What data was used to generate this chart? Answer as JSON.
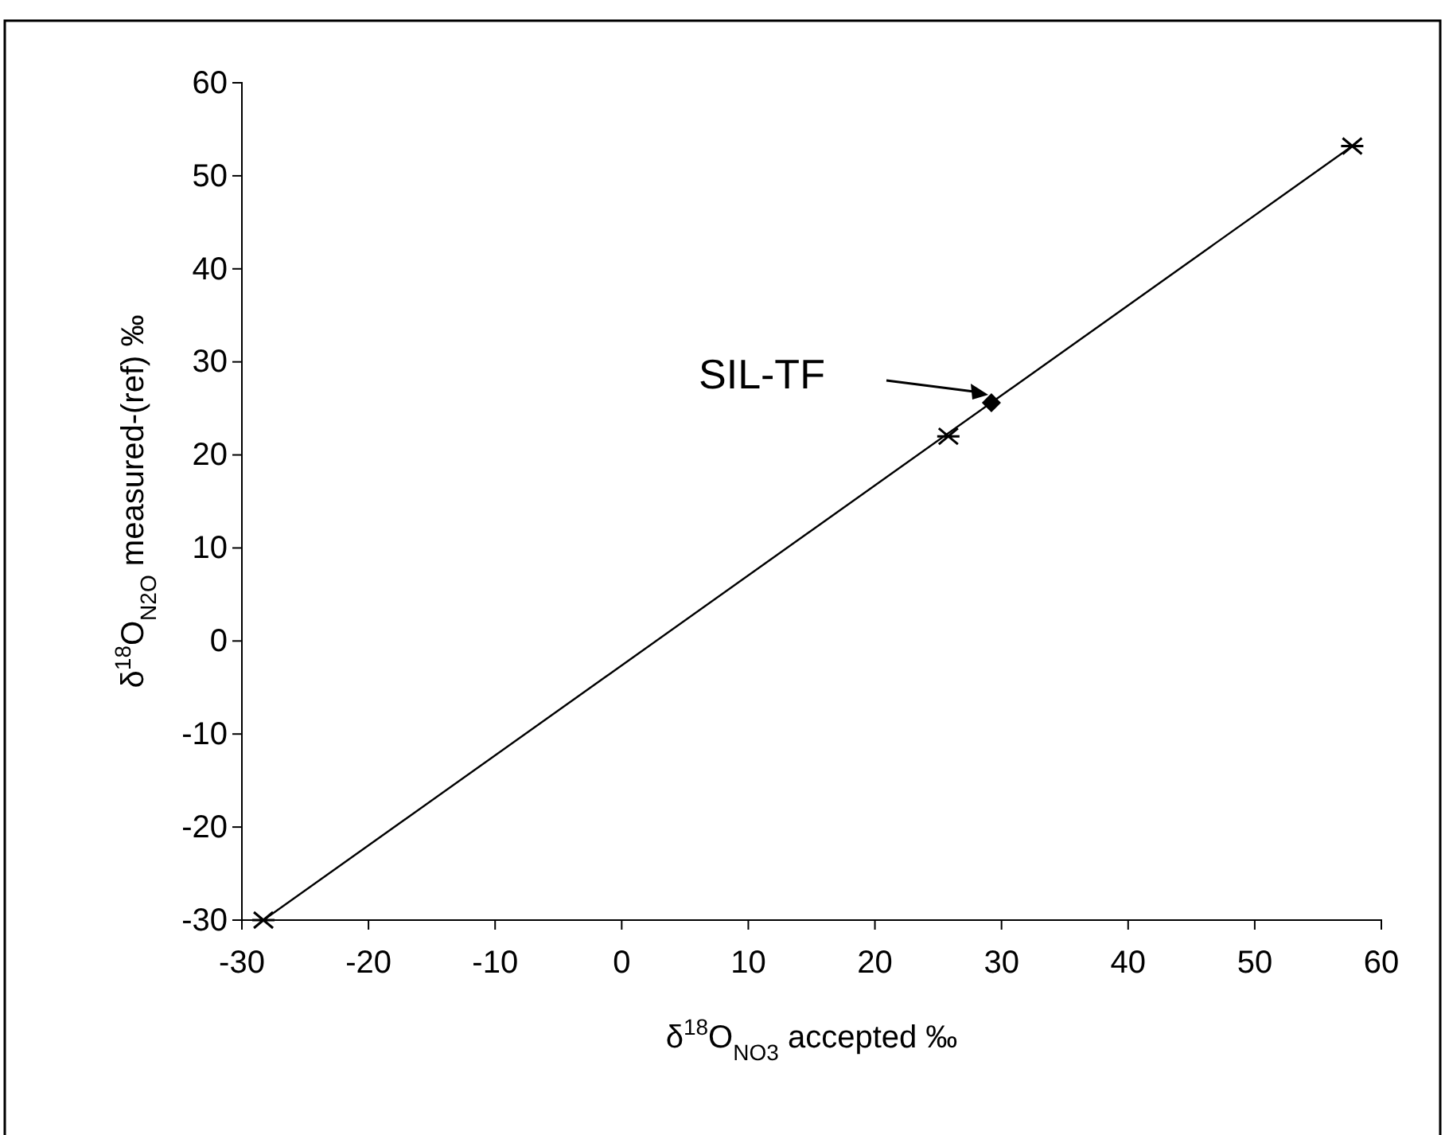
{
  "chart_data": {
    "type": "scatter",
    "xlabel": "δ$^{18}$O$_{NO3}$ accepted ‰",
    "ylabel": "δ$^{18}$O$_{N2O}$ measured-(ref) ‰",
    "xlim": [
      -30,
      60
    ],
    "xticks": [
      -30,
      -20,
      -10,
      0,
      10,
      20,
      30,
      40,
      50,
      60
    ],
    "ylim": [
      -30,
      60
    ],
    "yticks": [
      -30,
      -20,
      -10,
      0,
      10,
      20,
      30,
      40,
      50,
      60
    ],
    "grid": false,
    "series": [
      {
        "type": "line",
        "color": "#000000",
        "marker": "none",
        "x": [
          -28.3,
          57.7
        ],
        "values": [
          -30,
          53.2
        ]
      },
      {
        "color": "#000000",
        "marker": "cross",
        "x": [
          -28.3,
          25.8,
          57.7
        ],
        "values": [
          -30,
          22,
          53.2
        ]
      },
      {
        "color": "#000000",
        "marker": "diamond",
        "x": [
          29.2
        ],
        "values": [
          25.6
        ]
      }
    ],
    "annotations": [
      "SIL-TF"
    ]
  }
}
